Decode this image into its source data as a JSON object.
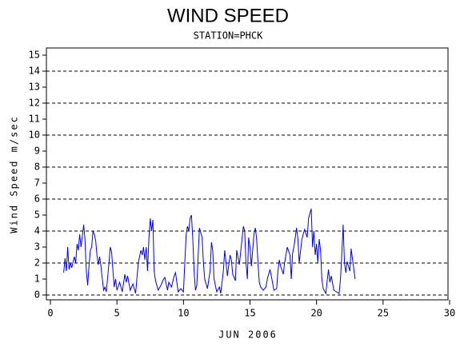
{
  "chart_data": {
    "type": "line",
    "title": "WIND SPEED",
    "subtitle": "STATION=PHCK",
    "x_label": "JUN 2006",
    "y_label": "Wind Speed m/sec",
    "xlim": [
      0,
      30
    ],
    "xticks": [
      0,
      5,
      10,
      15,
      20,
      25,
      30
    ],
    "ylim": [
      0,
      15
    ],
    "yticks": [
      0,
      1,
      2,
      3,
      4,
      5,
      6,
      7,
      8,
      9,
      10,
      11,
      12,
      13,
      14,
      15
    ],
    "grid_lines": [
      0,
      2,
      4,
      6,
      8,
      10,
      12,
      14
    ],
    "series": [
      {
        "color": "#0000ff",
        "x": [
          1.0,
          1.1,
          1.2,
          1.3,
          1.4,
          1.5,
          1.6,
          1.8,
          1.9,
          2.0,
          2.1,
          2.2,
          2.3,
          2.5,
          2.6,
          2.7,
          2.8,
          2.9,
          3.0,
          3.1,
          3.2,
          3.3,
          3.4,
          3.5,
          3.6,
          3.7,
          3.8,
          3.9,
          4.0,
          4.1,
          4.2,
          4.4,
          4.5,
          4.6,
          4.7,
          4.8,
          4.9,
          5.0,
          5.2,
          5.4,
          5.6,
          5.7,
          5.8,
          6.0,
          6.2,
          6.4,
          6.6,
          6.8,
          6.9,
          7.0,
          7.1,
          7.2,
          7.3,
          7.4,
          7.5,
          7.6,
          7.7,
          7.8,
          7.9,
          8.1,
          8.3,
          8.5,
          8.6,
          8.8,
          8.9,
          9.1,
          9.3,
          9.4,
          9.6,
          9.8,
          10.0,
          10.2,
          10.3,
          10.4,
          10.5,
          10.6,
          10.7,
          10.8,
          10.9,
          11.0,
          11.2,
          11.3,
          11.4,
          11.5,
          11.6,
          11.8,
          12.0,
          12.1,
          12.2,
          12.3,
          12.5,
          12.7,
          12.8,
          13.0,
          13.1,
          13.2,
          13.3,
          13.5,
          13.6,
          13.7,
          13.9,
          14.0,
          14.2,
          14.4,
          14.5,
          14.6,
          14.7,
          14.8,
          14.9,
          15.0,
          15.1,
          15.3,
          15.4,
          15.5,
          15.6,
          15.7,
          15.8,
          16.0,
          16.2,
          16.3,
          16.5,
          16.6,
          16.8,
          17.0,
          17.1,
          17.2,
          17.3,
          17.5,
          17.6,
          17.8,
          18.0,
          18.1,
          18.2,
          18.3,
          18.5,
          18.6,
          18.7,
          18.9,
          19.1,
          19.3,
          19.4,
          19.6,
          19.7,
          19.8,
          19.9,
          20.0,
          20.1,
          20.2,
          20.3,
          20.4,
          20.5,
          20.7,
          20.8,
          20.9,
          21.0,
          21.1,
          21.3,
          21.5,
          21.7,
          21.8,
          21.9,
          22.0,
          22.1,
          22.2,
          22.3,
          22.5,
          22.6,
          22.9
        ],
        "values": [
          1.4,
          2.3,
          1.5,
          3.0,
          1.6,
          2.0,
          1.7,
          2.4,
          2.0,
          3.2,
          2.8,
          3.8,
          3.0,
          4.4,
          3.5,
          1.5,
          0.6,
          1.8,
          2.8,
          3.0,
          4.0,
          3.8,
          3.4,
          2.5,
          1.9,
          2.4,
          1.8,
          1.0,
          0.3,
          0.5,
          0.2,
          2.0,
          3.0,
          2.7,
          1.5,
          0.5,
          1.0,
          0.3,
          0.8,
          0.2,
          1.3,
          0.8,
          1.2,
          0.3,
          0.7,
          0.1,
          2.0,
          2.8,
          2.5,
          3.0,
          2.2,
          3.0,
          1.5,
          3.5,
          4.8,
          4.0,
          4.7,
          1.5,
          0.9,
          0.3,
          0.6,
          1.0,
          1.1,
          0.3,
          0.8,
          0.5,
          1.2,
          1.4,
          0.2,
          0.4,
          0.2,
          3.8,
          4.3,
          4.0,
          4.8,
          5.0,
          3.5,
          1.5,
          0.3,
          0.6,
          4.2,
          3.9,
          3.6,
          2.0,
          1.0,
          0.4,
          1.5,
          3.3,
          2.8,
          1.0,
          0.2,
          0.5,
          0.1,
          1.5,
          2.8,
          2.0,
          1.2,
          2.5,
          2.2,
          1.3,
          0.9,
          2.8,
          1.9,
          3.5,
          4.3,
          4.0,
          2.0,
          1.0,
          3.6,
          3.0,
          1.8,
          3.8,
          4.2,
          3.5,
          2.0,
          0.8,
          0.5,
          0.3,
          0.5,
          1.0,
          1.6,
          1.2,
          0.3,
          0.4,
          1.5,
          2.2,
          1.8,
          1.3,
          2.0,
          3.0,
          2.5,
          1.0,
          2.6,
          3.0,
          4.2,
          3.5,
          2.0,
          3.5,
          4.1,
          3.6,
          4.8,
          5.4,
          3.0,
          4.0,
          2.5,
          3.2,
          2.0,
          3.5,
          2.8,
          1.0,
          0.4,
          0.1,
          0.9,
          1.6,
          0.8,
          1.2,
          0.3,
          0.2,
          0.1,
          1.0,
          2.6,
          4.4,
          2.0,
          1.4,
          2.1,
          1.5,
          2.9,
          1.0
        ]
      }
    ]
  }
}
